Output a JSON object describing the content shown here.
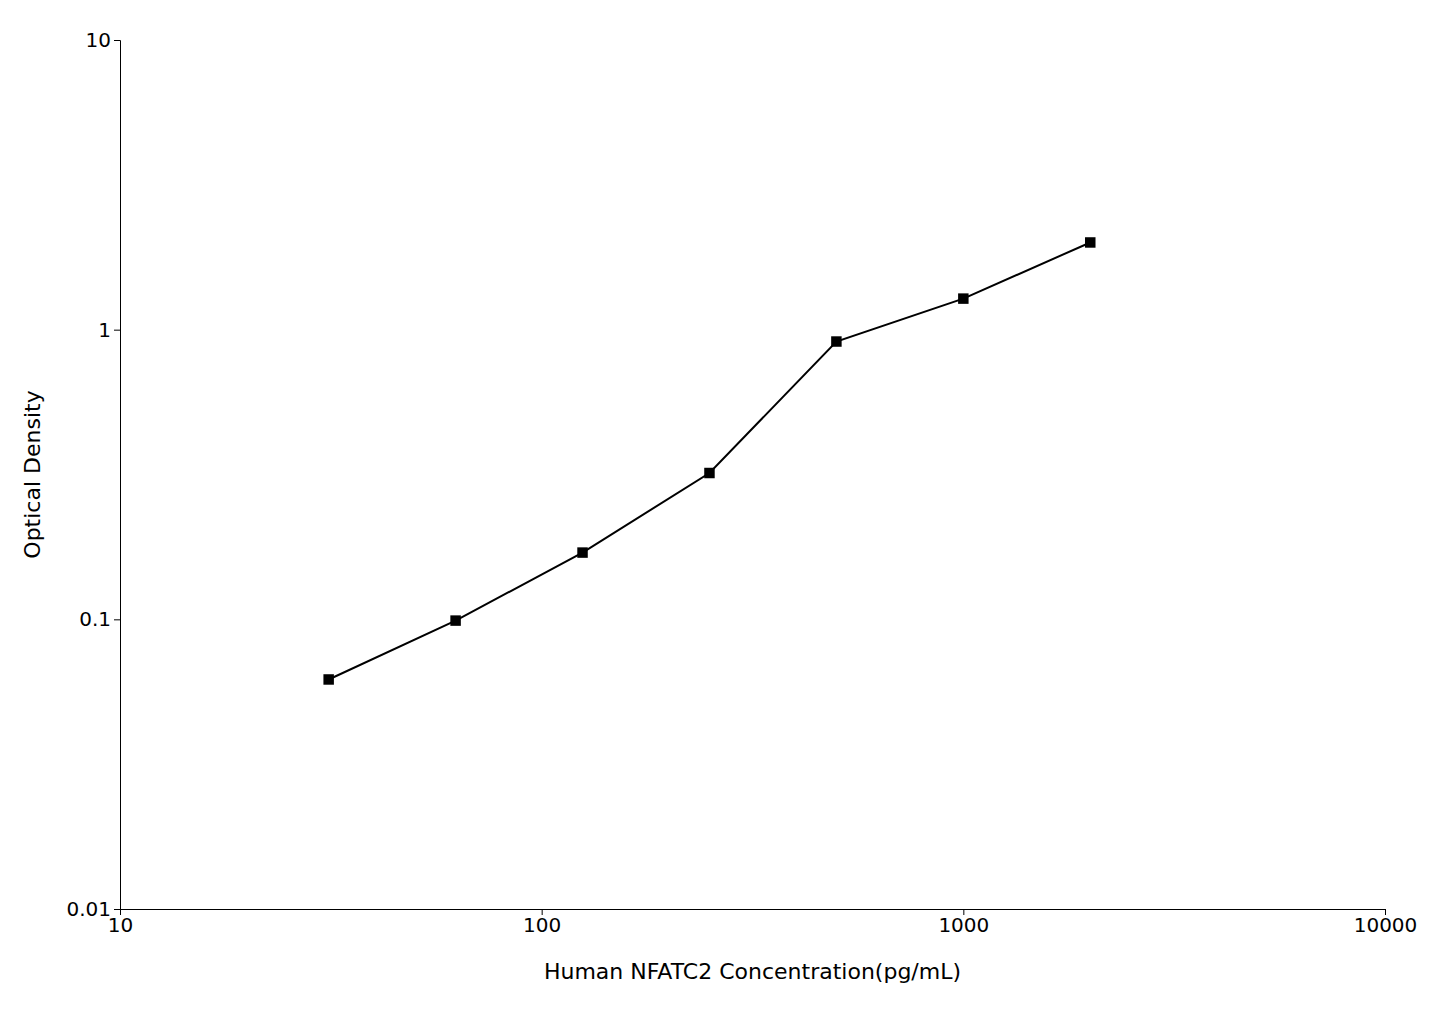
{
  "chart_data": {
    "type": "line",
    "xlabel": "Human NFATC2 Concentration(pg/mL)",
    "ylabel": "Optical Density",
    "x": [
      31.25,
      62.5,
      125,
      250,
      500,
      1000,
      2000
    ],
    "values": [
      0.062,
      0.099,
      0.17,
      0.32,
      0.91,
      1.28,
      2.0
    ],
    "color": "#000000",
    "marker": "square",
    "log": true,
    "xlim": [
      10,
      10000
    ],
    "ylim": [
      0.01,
      10
    ],
    "xticks": [
      10,
      100,
      1000,
      10000
    ],
    "yticks": [
      0.01,
      0.1,
      1,
      10
    ],
    "grid": false
  }
}
